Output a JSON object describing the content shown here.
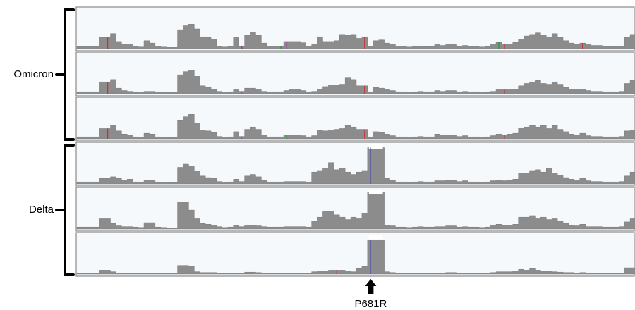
{
  "groups": [
    {
      "label": "Omicron",
      "tracks": [
        0,
        1,
        2
      ]
    },
    {
      "label": "Delta",
      "tracks": [
        3,
        4,
        5
      ]
    }
  ],
  "annotation": {
    "label": "P681R",
    "genome_fraction": 0.527
  },
  "colors": {
    "track_bg": "#f5f9fc",
    "track_border": "#8a8a8a",
    "coverage": "#8c8c8c",
    "coverage_edge": "#7a7a7a",
    "variant_red": "#c83232",
    "variant_blue": "#3a3ab4",
    "variant_green": "#2e9a3e",
    "variant_purple": "#9a4aa0",
    "highlight_white": "#ffffff",
    "bracket": "#000000",
    "arrow": "#000000"
  },
  "chart_data": {
    "type": "area",
    "bins": 100,
    "tracks": [
      {
        "coverage": [
          0.05,
          0.05,
          0.05,
          0.05,
          0.28,
          0.28,
          0.38,
          0.18,
          0.12,
          0.1,
          0.05,
          0.04,
          0.2,
          0.14,
          0.06,
          0.04,
          0.03,
          0.03,
          0.48,
          0.58,
          0.62,
          0.5,
          0.3,
          0.28,
          0.24,
          0.06,
          0.04,
          0.05,
          0.28,
          0.06,
          0.34,
          0.42,
          0.34,
          0.14,
          0.06,
          0.06,
          0.05,
          0.18,
          0.18,
          0.18,
          0.15,
          0.06,
          0.1,
          0.3,
          0.18,
          0.18,
          0.2,
          0.36,
          0.34,
          0.36,
          0.26,
          0.3,
          0.06,
          0.2,
          0.22,
          0.14,
          0.12,
          0.06,
          0.05,
          0.04,
          0.05,
          0.06,
          0.05,
          0.05,
          0.1,
          0.08,
          0.12,
          0.1,
          0.06,
          0.08,
          0.05,
          0.05,
          0.04,
          0.05,
          0.1,
          0.16,
          0.12,
          0.12,
          0.16,
          0.24,
          0.32,
          0.36,
          0.4,
          0.34,
          0.3,
          0.38,
          0.28,
          0.2,
          0.14,
          0.12,
          0.14,
          0.1,
          0.08,
          0.08,
          0.06,
          0.05,
          0.05,
          0.06,
          0.28,
          0.36
        ],
        "variants": [
          [
            5,
            "red"
          ],
          [
            29,
            "blue"
          ],
          [
            29,
            "red"
          ],
          [
            36,
            "green"
          ],
          [
            37,
            "purple"
          ],
          [
            51,
            "red"
          ],
          [
            75,
            "green"
          ],
          [
            76,
            "red"
          ],
          [
            90,
            "red"
          ]
        ]
      },
      {
        "coverage": [
          0.05,
          0.05,
          0.05,
          0.05,
          0.3,
          0.3,
          0.36,
          0.14,
          0.08,
          0.06,
          0.05,
          0.04,
          0.06,
          0.06,
          0.05,
          0.04,
          0.03,
          0.03,
          0.48,
          0.56,
          0.6,
          0.44,
          0.2,
          0.16,
          0.12,
          0.06,
          0.04,
          0.05,
          0.1,
          0.06,
          0.14,
          0.14,
          0.1,
          0.06,
          0.05,
          0.05,
          0.05,
          0.08,
          0.1,
          0.1,
          0.08,
          0.05,
          0.06,
          0.12,
          0.18,
          0.22,
          0.22,
          0.24,
          0.4,
          0.36,
          0.2,
          0.2,
          0.05,
          0.16,
          0.14,
          0.1,
          0.08,
          0.05,
          0.05,
          0.04,
          0.05,
          0.06,
          0.05,
          0.05,
          0.08,
          0.06,
          0.08,
          0.08,
          0.05,
          0.06,
          0.05,
          0.05,
          0.04,
          0.05,
          0.06,
          0.1,
          0.1,
          0.1,
          0.12,
          0.2,
          0.26,
          0.3,
          0.34,
          0.26,
          0.24,
          0.3,
          0.24,
          0.16,
          0.12,
          0.1,
          0.12,
          0.08,
          0.06,
          0.06,
          0.05,
          0.05,
          0.05,
          0.06,
          0.26,
          0.34
        ],
        "variants": [
          [
            5,
            "red"
          ],
          [
            29,
            "purple"
          ],
          [
            51,
            "red"
          ],
          [
            76,
            "red"
          ]
        ]
      },
      {
        "coverage": [
          0.05,
          0.05,
          0.05,
          0.05,
          0.26,
          0.26,
          0.34,
          0.2,
          0.12,
          0.1,
          0.05,
          0.04,
          0.14,
          0.12,
          0.05,
          0.04,
          0.03,
          0.03,
          0.46,
          0.56,
          0.62,
          0.4,
          0.22,
          0.2,
          0.16,
          0.06,
          0.04,
          0.05,
          0.18,
          0.06,
          0.24,
          0.3,
          0.24,
          0.1,
          0.05,
          0.05,
          0.05,
          0.1,
          0.1,
          0.1,
          0.08,
          0.05,
          0.08,
          0.22,
          0.2,
          0.22,
          0.24,
          0.26,
          0.34,
          0.3,
          0.24,
          0.24,
          0.05,
          0.18,
          0.16,
          0.12,
          0.08,
          0.05,
          0.05,
          0.04,
          0.05,
          0.06,
          0.05,
          0.05,
          0.12,
          0.1,
          0.1,
          0.1,
          0.06,
          0.08,
          0.05,
          0.05,
          0.04,
          0.05,
          0.08,
          0.12,
          0.1,
          0.12,
          0.14,
          0.28,
          0.3,
          0.34,
          0.3,
          0.34,
          0.26,
          0.34,
          0.24,
          0.18,
          0.12,
          0.1,
          0.14,
          0.08,
          0.06,
          0.06,
          0.05,
          0.05,
          0.05,
          0.06,
          0.2,
          0.22
        ],
        "variants": [
          [
            5,
            "red"
          ],
          [
            29,
            "purple"
          ],
          [
            37,
            "green"
          ],
          [
            51,
            "red"
          ],
          [
            76,
            "red"
          ]
        ]
      },
      {
        "coverage": [
          0.05,
          0.05,
          0.05,
          0.05,
          0.14,
          0.14,
          0.18,
          0.14,
          0.1,
          0.12,
          0.05,
          0.04,
          0.1,
          0.1,
          0.05,
          0.04,
          0.03,
          0.03,
          0.42,
          0.5,
          0.44,
          0.32,
          0.2,
          0.16,
          0.14,
          0.06,
          0.04,
          0.05,
          0.12,
          0.06,
          0.2,
          0.24,
          0.18,
          0.1,
          0.05,
          0.05,
          0.05,
          0.06,
          0.06,
          0.06,
          0.06,
          0.05,
          0.3,
          0.34,
          0.4,
          0.54,
          0.36,
          0.4,
          0.3,
          0.24,
          0.3,
          0.34,
          0.92,
          0.92,
          0.92,
          0.14,
          0.1,
          0.05,
          0.05,
          0.04,
          0.05,
          0.06,
          0.05,
          0.05,
          0.08,
          0.08,
          0.1,
          0.1,
          0.06,
          0.08,
          0.05,
          0.05,
          0.04,
          0.05,
          0.08,
          0.1,
          0.08,
          0.1,
          0.12,
          0.28,
          0.28,
          0.34,
          0.36,
          0.3,
          0.4,
          0.28,
          0.22,
          0.16,
          0.12,
          0.1,
          0.14,
          0.08,
          0.06,
          0.06,
          0.05,
          0.05,
          0.05,
          0.06,
          0.2,
          0.3
        ],
        "variants": [
          [
            52,
            "blue"
          ]
        ],
        "highlight_bins": [
          52,
          53,
          54
        ]
      },
      {
        "coverage": [
          0.05,
          0.05,
          0.05,
          0.05,
          0.26,
          0.26,
          0.14,
          0.08,
          0.06,
          0.06,
          0.05,
          0.04,
          0.16,
          0.16,
          0.05,
          0.04,
          0.03,
          0.03,
          0.68,
          0.68,
          0.48,
          0.26,
          0.14,
          0.12,
          0.1,
          0.06,
          0.04,
          0.05,
          0.1,
          0.06,
          0.1,
          0.1,
          0.08,
          0.06,
          0.05,
          0.05,
          0.05,
          0.06,
          0.06,
          0.06,
          0.06,
          0.05,
          0.2,
          0.3,
          0.44,
          0.44,
          0.36,
          0.3,
          0.24,
          0.3,
          0.26,
          0.4,
          0.94,
          0.94,
          0.94,
          0.1,
          0.08,
          0.05,
          0.05,
          0.04,
          0.05,
          0.06,
          0.05,
          0.05,
          0.06,
          0.06,
          0.08,
          0.08,
          0.05,
          0.06,
          0.05,
          0.05,
          0.04,
          0.05,
          0.1,
          0.12,
          0.1,
          0.1,
          0.12,
          0.3,
          0.3,
          0.34,
          0.26,
          0.3,
          0.24,
          0.26,
          0.2,
          0.14,
          0.1,
          0.08,
          0.12,
          0.06,
          0.06,
          0.06,
          0.05,
          0.05,
          0.05,
          0.06,
          0.18,
          0.26
        ],
        "variants": [],
        "highlight_bins": [
          52,
          53,
          54
        ]
      },
      {
        "coverage": [
          0.03,
          0.03,
          0.03,
          0.03,
          0.1,
          0.1,
          0.06,
          0.03,
          0.03,
          0.03,
          0.03,
          0.03,
          0.03,
          0.03,
          0.03,
          0.03,
          0.03,
          0.03,
          0.22,
          0.22,
          0.2,
          0.06,
          0.04,
          0.04,
          0.04,
          0.03,
          0.03,
          0.03,
          0.03,
          0.03,
          0.05,
          0.05,
          0.04,
          0.03,
          0.03,
          0.03,
          0.03,
          0.03,
          0.03,
          0.03,
          0.03,
          0.03,
          0.06,
          0.08,
          0.08,
          0.1,
          0.1,
          0.1,
          0.08,
          0.06,
          0.14,
          0.2,
          0.86,
          0.86,
          0.86,
          0.06,
          0.04,
          0.03,
          0.03,
          0.03,
          0.03,
          0.03,
          0.03,
          0.03,
          0.03,
          0.03,
          0.04,
          0.04,
          0.03,
          0.03,
          0.03,
          0.03,
          0.03,
          0.03,
          0.04,
          0.06,
          0.06,
          0.06,
          0.08,
          0.12,
          0.1,
          0.14,
          0.1,
          0.08,
          0.08,
          0.06,
          0.05,
          0.04,
          0.04,
          0.03,
          0.04,
          0.03,
          0.03,
          0.03,
          0.03,
          0.03,
          0.03,
          0.03,
          0.16,
          0.16
        ],
        "variants": [
          [
            46,
            "red"
          ],
          [
            52,
            "blue"
          ]
        ],
        "highlight_bins": [
          52,
          53,
          54
        ]
      }
    ]
  }
}
